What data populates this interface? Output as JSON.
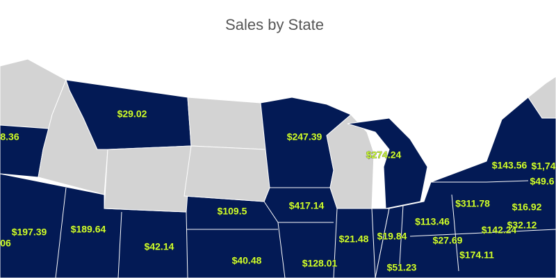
{
  "title": "Sales by State",
  "map": {
    "labels": [
      "8.36",
      "$29.02",
      "$247.39",
      "$274.24",
      "$143.56",
      "$1,74",
      "$49.6",
      "$311.78",
      "$16.92",
      "$109.5",
      "$417.14",
      "$197.39",
      "$189.64",
      "$113.46",
      "$32.12",
      "$142.24",
      "06",
      "$42.14",
      "$21.48",
      "$19.84",
      "$27.69",
      "$40.48",
      "$128.01",
      "$174.11",
      "$51.23"
    ]
  }
}
